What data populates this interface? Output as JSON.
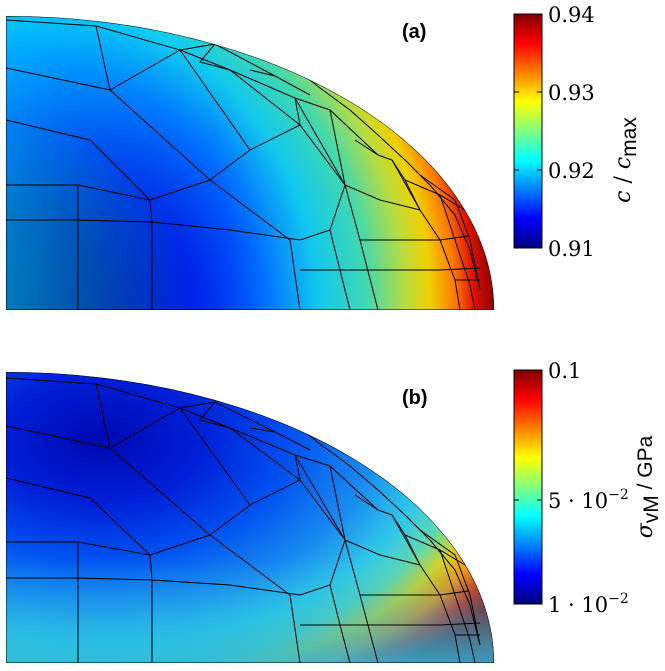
{
  "panels": [
    {
      "label": "(a)",
      "colorbar": {
        "ticks": [
          "0.94",
          "0.93",
          "0.92",
          "0.91"
        ],
        "title_var": "c",
        "title_sep": " / ",
        "title_var2": "c",
        "title_sub": "max"
      }
    },
    {
      "label": "(b)",
      "colorbar": {
        "tick_top": "0.1",
        "tick_mid_base": "5 · 10",
        "tick_mid_exp": "−2",
        "tick_bot_base": "1 · 10",
        "tick_bot_exp": "−2",
        "title_var": "σ",
        "title_sub": "vM",
        "title_unit": " / GPa"
      }
    }
  ],
  "colormap": [
    "#00007f",
    "#0000ff",
    "#007fff",
    "#00ffff",
    "#7fff7f",
    "#ffff00",
    "#ff7f00",
    "#ff0000",
    "#7f0000"
  ]
}
